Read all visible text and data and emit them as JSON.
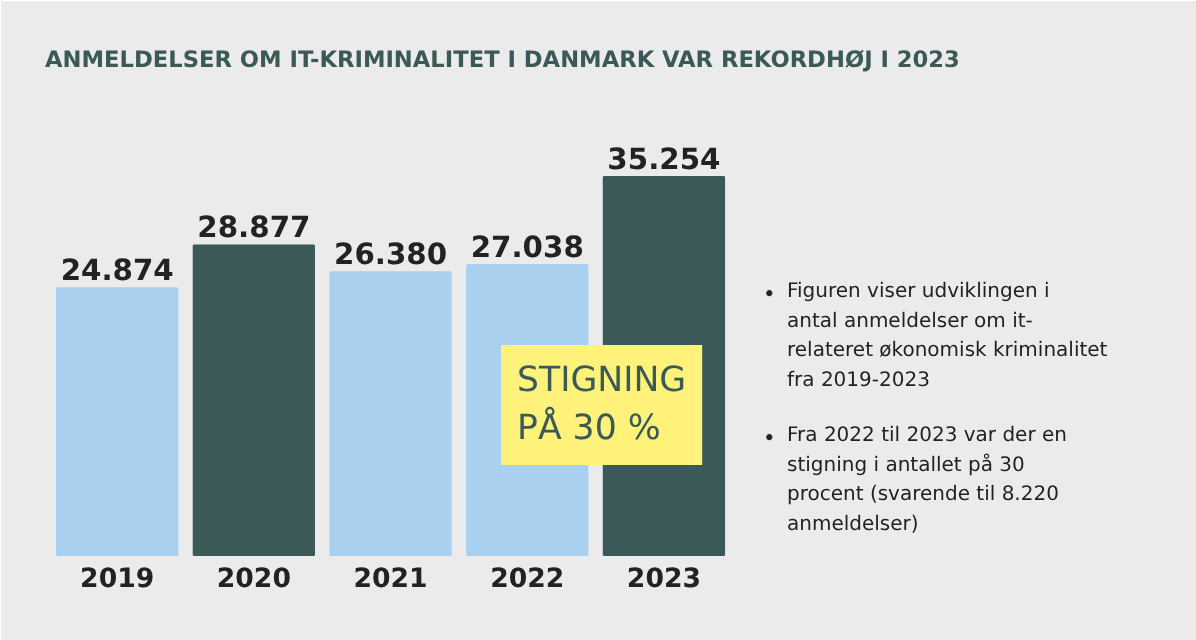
{
  "chart_data": {
    "type": "bar",
    "title": "ANMELDELSER OM IT-KRIMINALITET I DANMARK VAR REKORDHØJ I 2023",
    "categories": [
      "2019",
      "2020",
      "2021",
      "2022",
      "2023"
    ],
    "values": [
      24874,
      28877,
      26380,
      27038,
      35254
    ],
    "value_labels": [
      "24.874",
      "28.877",
      "26.380",
      "27.038",
      "35.254"
    ],
    "colors": [
      "#a9d0ee",
      "#3b5957",
      "#a9d0ee",
      "#a9d0ee",
      "#3b5957"
    ],
    "annotations": [
      "STIGNING PÅ 30 %",
      "• Figuren viser udviklingen i antal anmeldelser om it-relateret økonomisk kriminalitet fra 2019-2023",
      "• Fra 2022 til 2023 var der en stigning i antallet på 30 procent (svarende til 8.220 anmeldelser)"
    ],
    "grid": false
  }
}
